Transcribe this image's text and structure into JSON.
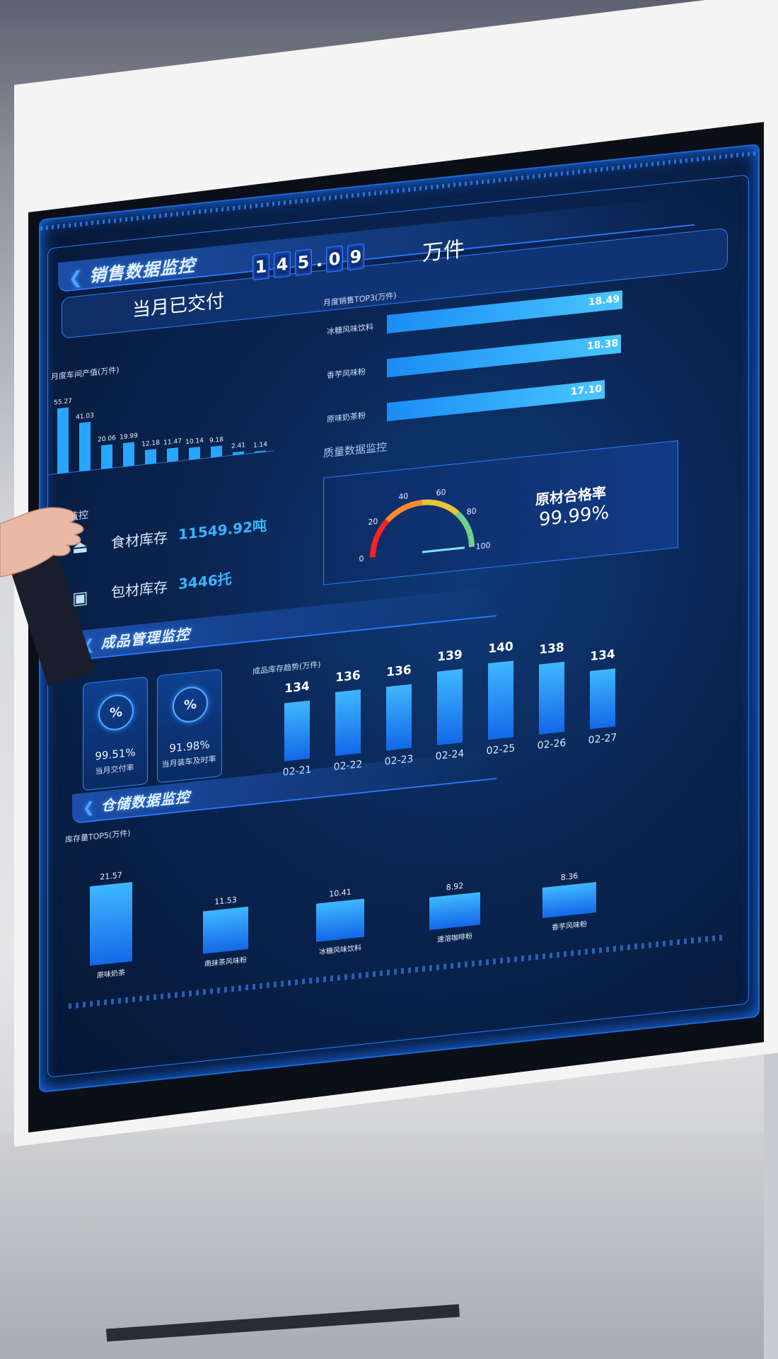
{
  "sales": {
    "section_title": "销售数据监控",
    "delivered_label": "当月已交付",
    "delivered_digits": [
      "1",
      "4",
      "5",
      ".",
      "0",
      "9"
    ],
    "delivered_unit": "万件",
    "workshop_chart": {
      "title": "月度车间产值(万件)",
      "values": [
        55.27,
        41.03,
        20.06,
        19.99,
        12.18,
        11.47,
        10.14,
        9.18,
        2.41,
        1.14
      ],
      "value_labels": [
        "55.27",
        "41.03",
        "20.06",
        "19.99",
        "12.18",
        "11.47",
        "10.14",
        "9.18",
        "2.41",
        "1.14"
      ]
    },
    "top3_chart": {
      "title": "月度销售TOP3(万件)",
      "categories": [
        "冰糖风味饮料",
        "香芋风味粉",
        "原味奶茶粉"
      ],
      "values": [
        18.49,
        18.38,
        17.1
      ],
      "value_labels": [
        "18.49",
        "18.38",
        "17.10"
      ]
    }
  },
  "inventory": {
    "section_title_partial": "监控",
    "food_label": "食材库存",
    "food_value": "11549.92吨",
    "package_label": "包材库存",
    "package_value": "3446托"
  },
  "quality": {
    "section_title": "质量数据监控",
    "gauge_ticks": [
      "0",
      "20",
      "40",
      "60",
      "80",
      "100"
    ],
    "gauge_value": 99.99,
    "rate_label": "原材合格率",
    "rate_value": "99.99%"
  },
  "finished": {
    "section_title": "成品管理监控",
    "kpis": [
      {
        "value": "99.51%",
        "label": "当月交付率",
        "icon": "percent-coin-icon"
      },
      {
        "value": "91.98%",
        "label": "当月装车及时率",
        "icon": "percent-truck-icon"
      }
    ],
    "trend_chart": {
      "title": "成品库存趋势(万件)",
      "categories": [
        "02-21",
        "02-22",
        "02-23",
        "02-24",
        "02-25",
        "02-26",
        "02-27"
      ],
      "values": [
        134,
        136,
        136,
        139,
        140,
        138,
        134
      ],
      "value_labels": [
        "134",
        "136",
        "136",
        "139",
        "140",
        "138",
        "134"
      ]
    }
  },
  "warehouse": {
    "section_title": "仓储数据监控",
    "top5_chart": {
      "title": "库存量TOP5(万件)",
      "categories": [
        "原味奶茶",
        "南抹茶风味粉",
        "冰糖风味饮料",
        "速溶咖啡粉",
        "香芋风味粉"
      ],
      "values": [
        21.57,
        11.53,
        10.41,
        8.92,
        8.36
      ],
      "value_labels": [
        "21.57",
        "11.53",
        "10.41",
        "8.92",
        "8.36"
      ]
    }
  },
  "colors": {
    "accent": "#2a7cff",
    "bar": "#1e9bff",
    "screen_bg": "#0a2552"
  }
}
